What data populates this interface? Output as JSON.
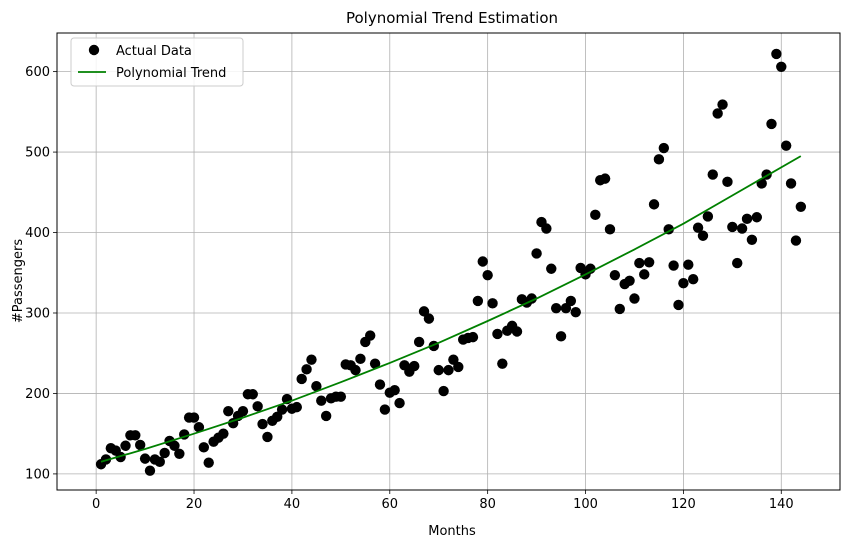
{
  "chart_data": {
    "type": "scatter",
    "title": "Polynomial Trend Estimation",
    "xlabel": "Months",
    "ylabel": "#Passengers",
    "xlim": [
      -8,
      152
    ],
    "ylim": [
      80,
      648
    ],
    "xticks": [
      0,
      20,
      40,
      60,
      80,
      100,
      120,
      140
    ],
    "yticks": [
      100,
      200,
      300,
      400,
      500,
      600
    ],
    "grid": true,
    "legend": "top-left",
    "series": [
      {
        "name": "Actual Data",
        "type": "scatter",
        "color": "#000000",
        "x": [
          1,
          2,
          3,
          4,
          5,
          6,
          7,
          8,
          9,
          10,
          11,
          12,
          13,
          14,
          15,
          16,
          17,
          18,
          19,
          20,
          21,
          22,
          23,
          24,
          25,
          26,
          27,
          28,
          29,
          30,
          31,
          32,
          33,
          34,
          35,
          36,
          37,
          38,
          39,
          40,
          41,
          42,
          43,
          44,
          45,
          46,
          47,
          48,
          49,
          50,
          51,
          52,
          53,
          54,
          55,
          56,
          57,
          58,
          59,
          60,
          61,
          62,
          63,
          64,
          65,
          66,
          67,
          68,
          69,
          70,
          71,
          72,
          73,
          74,
          75,
          76,
          77,
          78,
          79,
          80,
          81,
          82,
          83,
          84,
          85,
          86,
          87,
          88,
          89,
          90,
          91,
          92,
          93,
          94,
          95,
          96,
          97,
          98,
          99,
          100,
          101,
          102,
          103,
          104,
          105,
          106,
          107,
          108,
          109,
          110,
          111,
          112,
          113,
          114,
          115,
          116,
          117,
          118,
          119,
          120,
          121,
          122,
          123,
          124,
          125,
          126,
          127,
          128,
          129,
          130,
          131,
          132,
          133,
          134,
          135,
          136,
          137,
          138,
          139,
          140,
          141,
          142,
          143,
          144
        ],
        "y": [
          112,
          118,
          132,
          129,
          121,
          135,
          148,
          148,
          136,
          119,
          104,
          118,
          115,
          126,
          141,
          135,
          125,
          149,
          170,
          170,
          158,
          133,
          114,
          140,
          145,
          150,
          178,
          163,
          172,
          178,
          199,
          199,
          184,
          162,
          146,
          166,
          171,
          180,
          193,
          181,
          183,
          218,
          230,
          242,
          209,
          191,
          172,
          194,
          196,
          196,
          236,
          235,
          229,
          243,
          264,
          272,
          237,
          211,
          180,
          201,
          204,
          188,
          235,
          227,
          234,
          264,
          302,
          293,
          259,
          229,
          203,
          229,
          242,
          233,
          267,
          269,
          270,
          315,
          364,
          347,
          312,
          274,
          237,
          278,
          284,
          277,
          317,
          313,
          318,
          374,
          413,
          405,
          355,
          306,
          271,
          306,
          315,
          301,
          356,
          348,
          355,
          422,
          465,
          467,
          404,
          347,
          305,
          336,
          340,
          318,
          362,
          348,
          363,
          435,
          491,
          505,
          404,
          359,
          310,
          337,
          360,
          342,
          406,
          396,
          420,
          472,
          548,
          559,
          463,
          407,
          362,
          405,
          417,
          391,
          419,
          461,
          472,
          535,
          622,
          606,
          508,
          461,
          390,
          432
        ]
      },
      {
        "name": "Polynomial Trend",
        "type": "line",
        "color": "#008000",
        "x": [
          1,
          10,
          20,
          30,
          40,
          50,
          60,
          70,
          80,
          90,
          100,
          110,
          120,
          130,
          144
        ],
        "y": [
          115,
          131,
          150,
          170,
          191,
          214,
          238,
          263,
          290,
          318,
          348,
          379,
          411,
          446,
          495
        ]
      }
    ]
  }
}
